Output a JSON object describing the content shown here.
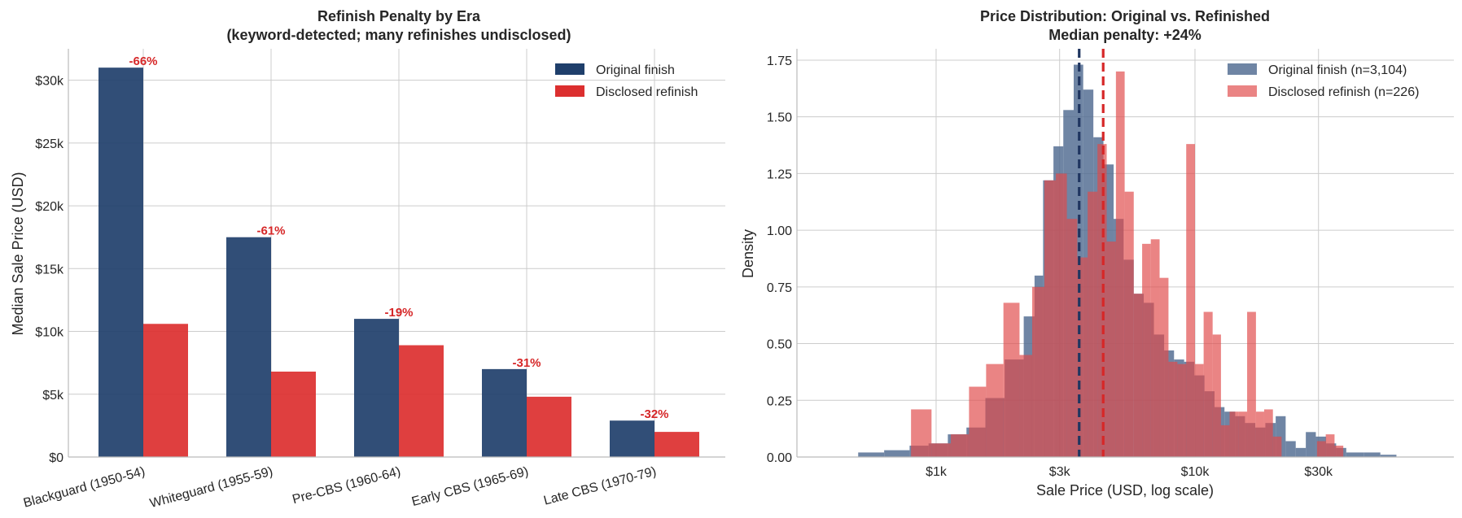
{
  "colors": {
    "original": "#1f3f6b",
    "refinish": "#dc2f2f",
    "orig_hist": "#4f6a90",
    "refin_hist": "#e04a4a",
    "median_orig": "#1f3560",
    "median_refin": "#d62728"
  },
  "chart_data": [
    {
      "type": "bar",
      "title": "Refinish Penalty by Era\n(keyword-detected; many refinishes undisclosed)",
      "xlabel": "",
      "ylabel": "Median Sale Price (USD)",
      "categories": [
        "Blackguard (1950-54)",
        "Whiteguard (1955-59)",
        "Pre-CBS (1960-64)",
        "Early CBS (1965-69)",
        "Late CBS (1970-79)"
      ],
      "series": [
        {
          "name": "Original finish",
          "values": [
            31000,
            17500,
            11000,
            7000,
            2900
          ]
        },
        {
          "name": "Disclosed refinish",
          "values": [
            10600,
            6800,
            8900,
            4800,
            2000
          ]
        }
      ],
      "annotations": [
        "-66%",
        "-61%",
        "-19%",
        "-31%",
        "-32%"
      ],
      "ylim": [
        0,
        32500
      ],
      "yticks": [
        0,
        5000,
        10000,
        15000,
        20000,
        25000,
        30000
      ],
      "ytick_labels": [
        "$0",
        "$5k",
        "$10k",
        "$15k",
        "$20k",
        "$25k",
        "$30k"
      ],
      "grid": true,
      "legend": "top-right"
    },
    {
      "type": "histogram",
      "title": "Price Distribution: Original vs. Refinished\nMedian penalty: +24%",
      "xlabel": "Sale Price (USD, log scale)",
      "ylabel": "Density",
      "xscale": "log10",
      "xlim": [
        290,
        100000
      ],
      "ylim": [
        0,
        1.8
      ],
      "xticks": [
        1000,
        3000,
        10000,
        30000
      ],
      "xtick_labels": [
        "$1k",
        "$3k",
        "$10k",
        "$30k"
      ],
      "yticks": [
        0,
        0.25,
        0.5,
        0.75,
        1.0,
        1.25,
        1.5,
        1.75
      ],
      "ytick_labels": [
        "0.00",
        "0.25",
        "0.50",
        "0.75",
        "1.00",
        "1.25",
        "1.50",
        "1.75"
      ],
      "grid": true,
      "legend": "top-right",
      "series": [
        {
          "name": "Original finish (n=3,104)",
          "bins": [
            [
              500,
              630,
              0.02
            ],
            [
              630,
              790,
              0.03
            ],
            [
              790,
              935,
              0.05
            ],
            [
              935,
              1110,
              0.06
            ],
            [
              1110,
              1310,
              0.1
            ],
            [
              1310,
              1550,
              0.13
            ],
            [
              1550,
              1840,
              0.26
            ],
            [
              1840,
              2180,
              0.43
            ],
            [
              2180,
              2400,
              0.62
            ],
            [
              2400,
              2590,
              0.8
            ],
            [
              2590,
              2840,
              1.22
            ],
            [
              2840,
              3100,
              1.37
            ],
            [
              3100,
              3400,
              1.53
            ],
            [
              3400,
              3700,
              1.73
            ],
            [
              3700,
              4050,
              1.62
            ],
            [
              4050,
              4430,
              1.41
            ],
            [
              4430,
              4850,
              1.29
            ],
            [
              4850,
              5300,
              1.05
            ],
            [
              5300,
              5800,
              0.87
            ],
            [
              5800,
              6340,
              0.72
            ],
            [
              6340,
              6940,
              0.68
            ],
            [
              6940,
              7600,
              0.54
            ],
            [
              7600,
              8300,
              0.47
            ],
            [
              8300,
              9080,
              0.43
            ],
            [
              9080,
              9940,
              0.42
            ],
            [
              9940,
              10880,
              0.36
            ],
            [
              10880,
              11900,
              0.29
            ],
            [
              11900,
              13000,
              0.22
            ],
            [
              13000,
              14300,
              0.2
            ],
            [
              14300,
              15600,
              0.18
            ],
            [
              15600,
              17100,
              0.15
            ],
            [
              17100,
              18700,
              0.13
            ],
            [
              18700,
              20500,
              0.15
            ],
            [
              20500,
              22400,
              0.18
            ],
            [
              22400,
              24500,
              0.07
            ],
            [
              24500,
              26800,
              0.04
            ],
            [
              26800,
              29300,
              0.11
            ],
            [
              29300,
              32100,
              0.09
            ],
            [
              32100,
              35100,
              0.06
            ],
            [
              35100,
              38400,
              0.04
            ],
            [
              38400,
              45000,
              0.02
            ],
            [
              45000,
              52000,
              0.02
            ],
            [
              52000,
              60000,
              0.01
            ]
          ]
        },
        {
          "name": "Disclosed refinish (n=226)",
          "bins": [
            [
              800,
              960,
              0.21
            ],
            [
              960,
              1140,
              0.06
            ],
            [
              1140,
              1340,
              0.1
            ],
            [
              1340,
              1560,
              0.31
            ],
            [
              1560,
              1820,
              0.41
            ],
            [
              1820,
              2100,
              0.68
            ],
            [
              2100,
              2350,
              0.45
            ],
            [
              2350,
              2620,
              0.75
            ],
            [
              2620,
              2900,
              1.22
            ],
            [
              2900,
              3200,
              1.25
            ],
            [
              3200,
              3510,
              1.05
            ],
            [
              3510,
              3850,
              0.88
            ],
            [
              3850,
              4200,
              1.17
            ],
            [
              4200,
              4560,
              1.38
            ],
            [
              4560,
              4950,
              0.95
            ],
            [
              4950,
              5350,
              1.7
            ],
            [
              5350,
              5800,
              1.17
            ],
            [
              5800,
              6250,
              0.72
            ],
            [
              6250,
              6750,
              0.94
            ],
            [
              6750,
              7300,
              0.96
            ],
            [
              7300,
              7900,
              0.79
            ],
            [
              7900,
              8550,
              0.42
            ],
            [
              8550,
              9250,
              0.41
            ],
            [
              9250,
              10000,
              1.38
            ],
            [
              10000,
              10800,
              0.41
            ],
            [
              10800,
              11700,
              0.64
            ],
            [
              11700,
              12600,
              0.54
            ],
            [
              12600,
              13600,
              0.14
            ],
            [
              13600,
              14700,
              0.2
            ],
            [
              14700,
              15900,
              0.2
            ],
            [
              15900,
              17200,
              0.64
            ],
            [
              17200,
              18500,
              0.2
            ],
            [
              18500,
              20000,
              0.21
            ],
            [
              20000,
              21600,
              0.09
            ],
            [
              29600,
              32000,
              0.07
            ],
            [
              32000,
              34600,
              0.1
            ],
            [
              34600,
              37400,
              0.05
            ]
          ]
        }
      ],
      "medians": [
        {
          "series": "Original finish (n=3,104)",
          "value": 3570
        },
        {
          "series": "Disclosed refinish (n=226)",
          "value": 4420
        }
      ]
    }
  ]
}
